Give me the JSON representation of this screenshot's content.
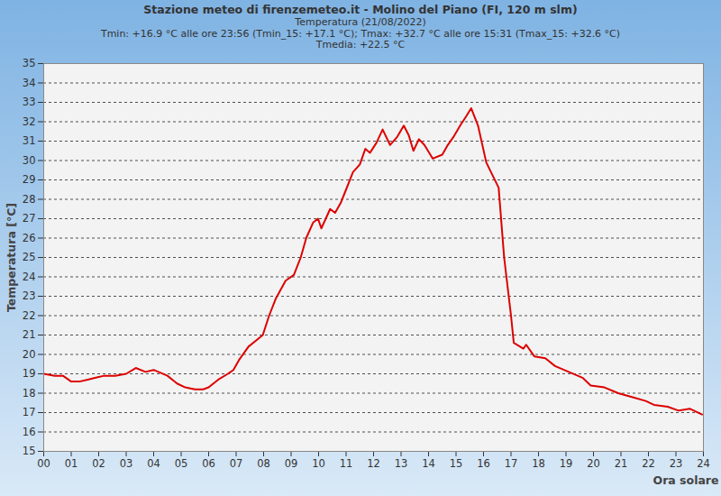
{
  "chart_data": {
    "type": "line",
    "title": "Stazione meteo di firenzemeteo.it - Molino del Piano (FI, 120 m slm)",
    "subtitle": [
      "Temperatura (21/08/2022)",
      "Tmin: +16.9 °C alle ore 23:56 (Tmin_15: +17.1 °C); Tmax: +32.7 °C alle ore 15:31 (Tmax_15: +32.6 °C)",
      "Tmedia: +22.5 °C"
    ],
    "x_label": "Ora solare",
    "y_label": "Temperatura [°C]",
    "x": [
      0,
      0.4,
      0.7,
      1.0,
      1.3,
      1.6,
      1.9,
      2.2,
      2.6,
      3.0,
      3.35,
      3.7,
      4.0,
      4.5,
      4.85,
      5.15,
      5.5,
      5.8,
      6.0,
      6.35,
      6.7,
      6.9,
      7.1,
      7.45,
      7.8,
      7.97,
      8.2,
      8.45,
      8.8,
      9.1,
      9.35,
      9.55,
      9.8,
      9.98,
      10.1,
      10.42,
      10.6,
      10.8,
      11.0,
      11.25,
      11.5,
      11.7,
      11.87,
      12.1,
      12.33,
      12.6,
      12.85,
      13.1,
      13.28,
      13.45,
      13.65,
      13.85,
      14.15,
      14.5,
      14.7,
      14.9,
      15.15,
      15.38,
      15.55,
      15.8,
      16.1,
      16.55,
      16.75,
      17.0,
      17.1,
      17.45,
      17.55,
      17.85,
      18.25,
      18.6,
      19.1,
      19.6,
      19.9,
      20.4,
      20.9,
      21.4,
      21.9,
      22.2,
      22.7,
      23.1,
      23.5,
      23.95
    ],
    "series": [
      {
        "name": "Temperatura",
        "color": "#dd0000",
        "values": [
          19.0,
          18.9,
          18.9,
          18.6,
          18.6,
          18.7,
          18.8,
          18.9,
          18.9,
          19.0,
          19.3,
          19.1,
          19.2,
          18.9,
          18.5,
          18.3,
          18.2,
          18.2,
          18.3,
          18.7,
          19.0,
          19.2,
          19.7,
          20.4,
          20.8,
          21.0,
          22.0,
          22.9,
          23.8,
          24.1,
          25.0,
          26.0,
          26.8,
          27.0,
          26.5,
          27.5,
          27.3,
          27.8,
          28.5,
          29.4,
          29.8,
          30.6,
          30.4,
          30.9,
          31.6,
          30.8,
          31.2,
          31.8,
          31.3,
          30.5,
          31.1,
          30.8,
          30.1,
          30.3,
          30.8,
          31.2,
          31.8,
          32.3,
          32.7,
          31.8,
          29.9,
          28.6,
          25.0,
          22.0,
          20.6,
          20.3,
          20.5,
          19.9,
          19.8,
          19.4,
          19.1,
          18.8,
          18.4,
          18.3,
          18.0,
          17.8,
          17.6,
          17.4,
          17.3,
          17.1,
          17.2,
          16.9
        ]
      }
    ],
    "xlim": [
      0,
      24
    ],
    "xticks": [
      {
        "value": 0,
        "label": "00"
      },
      {
        "value": 1,
        "label": "01"
      },
      {
        "value": 2,
        "label": "02"
      },
      {
        "value": 3,
        "label": "03"
      },
      {
        "value": 4,
        "label": "04"
      },
      {
        "value": 5,
        "label": "05"
      },
      {
        "value": 6,
        "label": "06"
      },
      {
        "value": 7,
        "label": "07"
      },
      {
        "value": 8,
        "label": "08"
      },
      {
        "value": 9,
        "label": "09"
      },
      10,
      11,
      12,
      13,
      14,
      15,
      16,
      17,
      18,
      19,
      20,
      21,
      22,
      23,
      24
    ],
    "ylim": [
      15,
      35
    ],
    "yticks": [
      15,
      16,
      17,
      18,
      19,
      20,
      21,
      22,
      23,
      24,
      25,
      26,
      27,
      28,
      29,
      30,
      31,
      32,
      33,
      34,
      35
    ],
    "grid": true
  }
}
